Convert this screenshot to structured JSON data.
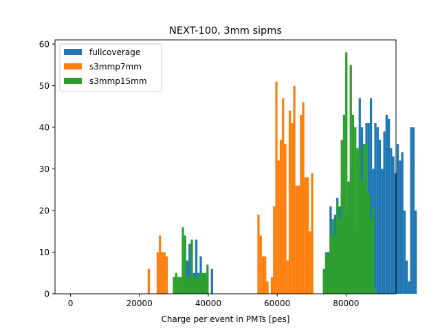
{
  "chart_data": {
    "type": "histogram",
    "title": "NEXT-100, 3mm sipms",
    "xlabel": "Charge per event in PMTs [pes]",
    "ylabel": "",
    "xlim": [
      -4500,
      94500
    ],
    "ylim": [
      0,
      61
    ],
    "xticks": [
      0,
      20000,
      40000,
      60000,
      80000
    ],
    "xtick_labels": [
      "0",
      "20000",
      "40000",
      "60000",
      "80000"
    ],
    "yticks": [
      0,
      10,
      20,
      30,
      40,
      50,
      60
    ],
    "ytick_labels": [
      "0",
      "10",
      "20",
      "30",
      "40",
      "50",
      "60"
    ],
    "legend": {
      "position": "top-left"
    },
    "colors": {
      "fullcoverage": "#1f77b4",
      "s3mmp7mm": "#ff7f0e",
      "s3mmp15mm": "#2ca02c"
    },
    "series": [
      {
        "name": "fullcoverage",
        "x_start": 31000,
        "bin_width": 650,
        "counts": [
          4,
          2,
          4,
          2,
          8,
          12,
          5,
          5,
          13,
          5,
          9,
          4,
          2,
          4,
          0,
          6,
          0,
          0,
          0,
          0,
          0,
          0,
          0,
          0,
          0,
          0,
          0,
          0,
          0,
          0,
          0,
          0,
          0,
          0,
          0,
          0,
          0,
          0,
          0,
          0,
          0,
          0,
          0,
          0,
          0,
          0,
          0,
          0,
          0,
          0,
          0,
          0,
          0,
          0,
          0,
          0,
          0,
          0,
          0,
          0,
          0,
          0,
          0,
          0,
          0,
          0,
          8,
          10,
          21,
          16,
          19,
          23,
          21,
          24,
          16,
          19,
          22,
          27,
          30,
          15,
          32,
          47,
          40,
          28,
          41,
          41,
          47,
          30,
          41,
          40,
          37,
          30,
          39,
          43,
          42,
          35,
          33,
          29,
          36,
          32,
          34,
          20,
          8,
          3,
          40,
          40,
          20,
          0
        ]
      },
      {
        "name": "s3mmp7mm",
        "x_start": 22400,
        "bin_width": 650,
        "counts": [
          6,
          0,
          0,
          0,
          10,
          14,
          10,
          10,
          9,
          0,
          0,
          0,
          0,
          0,
          0,
          0,
          0,
          0,
          0,
          0,
          0,
          0,
          0,
          0,
          0,
          0,
          0,
          0,
          0,
          0,
          0,
          0,
          0,
          0,
          0,
          0,
          0,
          0,
          0,
          0,
          0,
          0,
          0,
          0,
          0,
          0,
          0,
          0,
          0,
          19,
          14,
          9,
          9,
          3,
          0,
          4,
          21,
          51,
          32,
          37,
          47,
          36,
          8,
          44,
          41,
          50,
          26,
          26,
          43,
          46,
          28,
          28,
          15,
          29
        ]
      },
      {
        "name": "s3mmp15mm",
        "x_start": 29700,
        "bin_width": 650,
        "counts": [
          4,
          5,
          4,
          4,
          16,
          14,
          4,
          4,
          13,
          4,
          4,
          4,
          5,
          5,
          5,
          7,
          0,
          0,
          0,
          0,
          0,
          0,
          0,
          0,
          0,
          0,
          0,
          0,
          0,
          0,
          0,
          0,
          0,
          0,
          0,
          0,
          0,
          0,
          0,
          0,
          0,
          0,
          0,
          0,
          0,
          0,
          0,
          0,
          0,
          0,
          0,
          0,
          0,
          0,
          0,
          0,
          0,
          0,
          0,
          0,
          0,
          0,
          0,
          0,
          0,
          0,
          0,
          6,
          10,
          9,
          14,
          18,
          14,
          22,
          18,
          37,
          43,
          58,
          27,
          55,
          43,
          40,
          35,
          35,
          27,
          36,
          36,
          24,
          18,
          21,
          1
        ]
      }
    ]
  }
}
